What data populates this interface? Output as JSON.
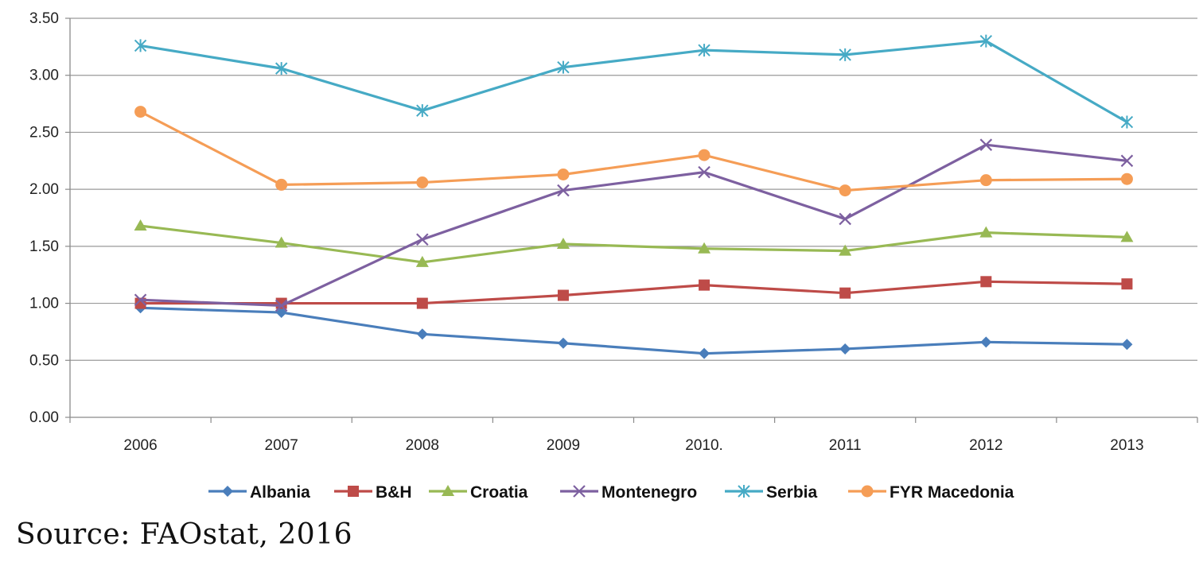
{
  "chart_data": {
    "type": "line",
    "title": "",
    "xlabel": "",
    "ylabel": "",
    "categories": [
      "2006",
      "2007",
      "2008",
      "2009",
      "2010.",
      "2011",
      "2012",
      "2013"
    ],
    "yticks": [
      "0.00",
      "0.50",
      "1.00",
      "1.50",
      "2.00",
      "2.50",
      "3.00",
      "3.50"
    ],
    "ylim": [
      0,
      3.5
    ],
    "grid": true,
    "legend_position": "bottom",
    "series": [
      {
        "name": "Albania",
        "color": "#4a7ebb",
        "marker": "diamond",
        "values": [
          0.96,
          0.92,
          0.73,
          0.65,
          0.56,
          0.6,
          0.66,
          0.64
        ]
      },
      {
        "name": "B&H",
        "color": "#be4b48",
        "marker": "square",
        "values": [
          1.0,
          1.0,
          1.0,
          1.07,
          1.16,
          1.09,
          1.19,
          1.17
        ]
      },
      {
        "name": "Croatia",
        "color": "#98b954",
        "marker": "triangle",
        "values": [
          1.68,
          1.53,
          1.36,
          1.52,
          1.48,
          1.46,
          1.62,
          1.58
        ]
      },
      {
        "name": "Montenegro",
        "color": "#7d60a0",
        "marker": "x",
        "values": [
          1.03,
          0.98,
          1.56,
          1.99,
          2.15,
          1.74,
          2.39,
          2.25
        ]
      },
      {
        "name": "Serbia",
        "color": "#46aac5",
        "marker": "star",
        "values": [
          3.26,
          3.06,
          2.69,
          3.07,
          3.22,
          3.18,
          3.3,
          2.59
        ]
      },
      {
        "name": "FYR Macedonia",
        "color": "#f59d56",
        "marker": "circle",
        "values": [
          2.68,
          2.04,
          2.06,
          2.13,
          2.3,
          1.99,
          2.08,
          2.09
        ]
      }
    ]
  },
  "source_text": "Source: FAOstat, 2016"
}
